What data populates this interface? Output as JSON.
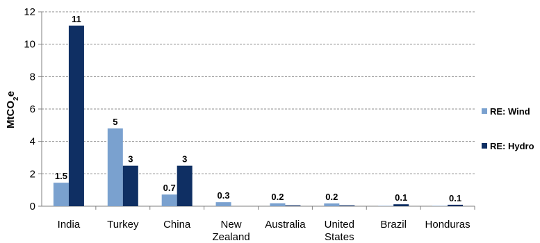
{
  "chart_data": {
    "type": "bar",
    "categories": [
      [
        "India"
      ],
      [
        "Turkey"
      ],
      [
        "China"
      ],
      [
        "New",
        "Zealand"
      ],
      [
        "Australia"
      ],
      [
        "United",
        "States"
      ],
      [
        "Brazil"
      ],
      [
        "Honduras"
      ]
    ],
    "series": [
      {
        "name": "RE: Wind",
        "color": "#7aa1cf",
        "values": [
          1.45,
          4.8,
          0.72,
          0.25,
          0.18,
          0.17,
          0.02,
          0.02
        ],
        "labels": [
          "1.5",
          "5",
          "0.7",
          "0.3",
          "0.2",
          "0.2",
          "",
          ""
        ]
      },
      {
        "name": "RE: Hydro",
        "color": "#0f2f63",
        "values": [
          11.15,
          2.5,
          2.5,
          0.0,
          0.05,
          0.05,
          0.12,
          0.09
        ],
        "labels": [
          "11",
          "3",
          "3",
          "",
          "",
          "",
          "0.1",
          "0.1"
        ]
      }
    ],
    "ylabel": "MtCO",
    "ylabel_sub": "2",
    "ylabel_suffix": "e",
    "ylim": [
      0,
      12
    ],
    "yticks": [
      "0",
      "2",
      "4",
      "6",
      "8",
      "10",
      "12"
    ],
    "grid": true,
    "legend_position": "right"
  }
}
